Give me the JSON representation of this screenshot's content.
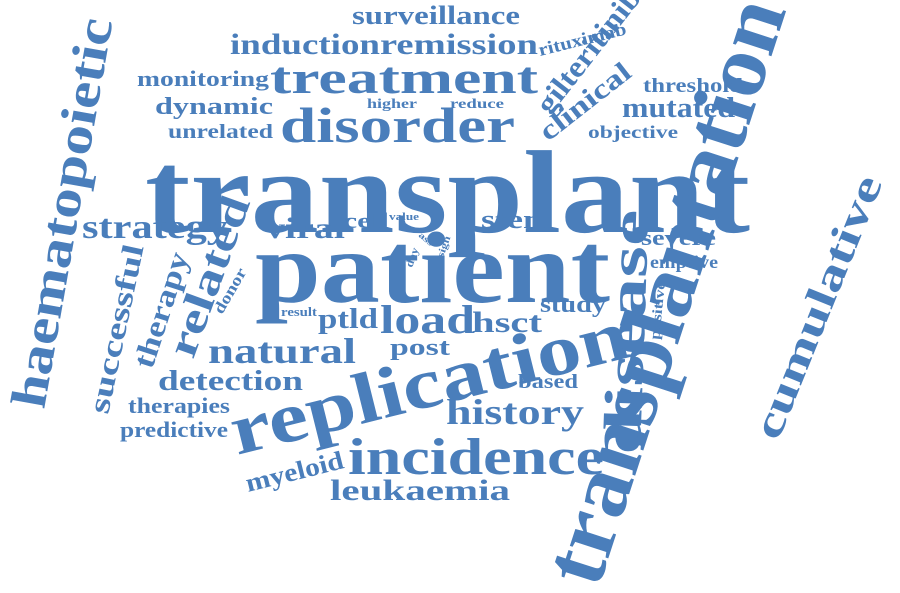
{
  "cloud": {
    "color": "#4a7ebb",
    "words": {
      "transplant": "transplant",
      "patient": "patient",
      "transplantation": "transplantation",
      "replication": "replication",
      "disorder": "disorder",
      "treatment": "treatment",
      "haematopoietic": "haematopoietic",
      "incidence": "incidence",
      "disease": "disease",
      "cumulative": "cumulative",
      "history": "history",
      "leukaemia": "leukaemia",
      "related": "related",
      "natural": "natural",
      "load": "load",
      "strategy": "strategy",
      "induction": "induction",
      "remission": "remission",
      "surveillance": "surveillance",
      "gilteritinib": "gilteritinib",
      "clinical": "clinical",
      "mutated": "mutated",
      "monitoring": "monitoring",
      "dynamic": "dynamic",
      "unrelated": "unrelated",
      "successful": "successful",
      "therapy": "therapy",
      "viral": "viral",
      "cell": "cell",
      "stem": "stem",
      "hsct": "hsct",
      "study": "study",
      "ptld": "ptld",
      "post": "post",
      "detection": "detection",
      "therapies": "therapies",
      "predictive": "predictive",
      "myeloid": "myeloid",
      "based": "based",
      "severe": "severe",
      "emptive": "emptive",
      "positive": "positive",
      "threshold": "threshold",
      "objective": "objective",
      "rituximab": "rituximab",
      "higher": "higher",
      "reduce": "reduce",
      "donor": "donor",
      "result": "result",
      "value": "value",
      "day": "day",
      "sign": "sign",
      "ass": "ass"
    }
  }
}
